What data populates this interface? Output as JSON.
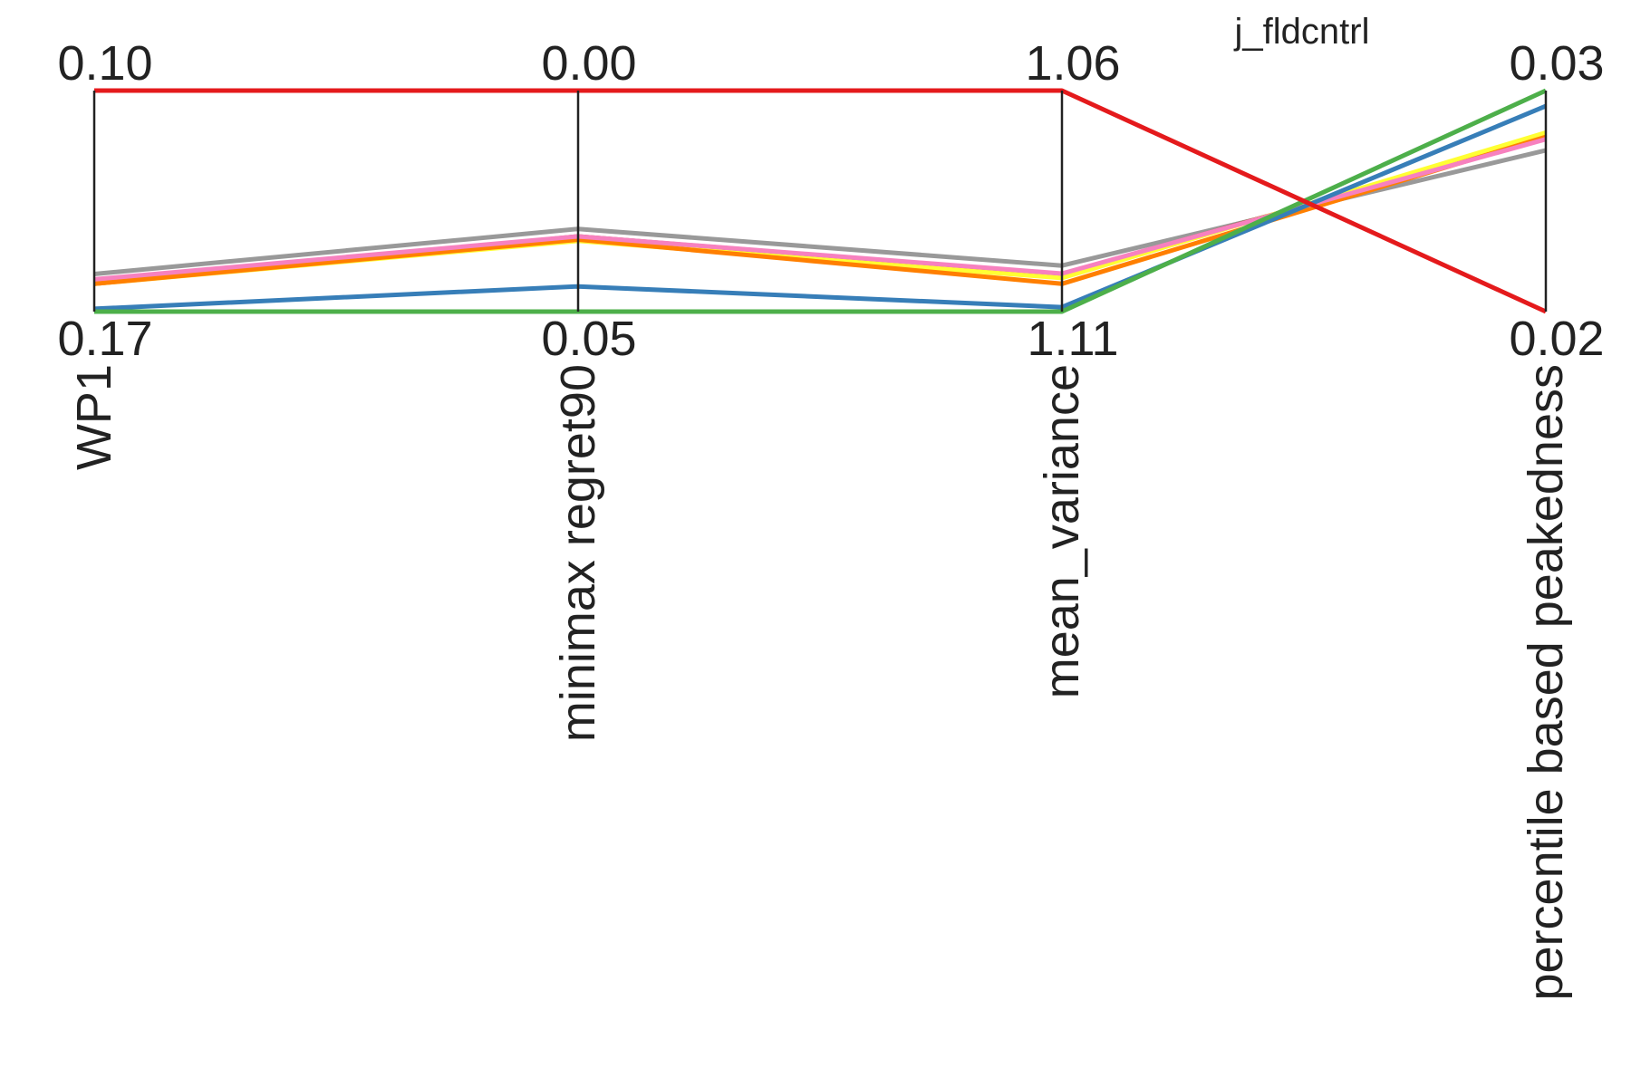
{
  "chart_data": {
    "type": "parallel_coordinates",
    "title": "j_fldcntrl",
    "axes": [
      {
        "name": "WP1",
        "top_label": "0.10",
        "bottom_label": "0.17",
        "top": 0.1,
        "bottom": 0.17
      },
      {
        "name": "minimax regret90",
        "top_label": "0.00",
        "bottom_label": "0.05",
        "top": 0.0,
        "bottom": 0.05
      },
      {
        "name": "mean_variance",
        "top_label": "1.06",
        "bottom_label": "1.11",
        "top": 1.06,
        "bottom": 1.11
      },
      {
        "name": "percentile based peakedness",
        "top_label": "0.03",
        "bottom_label": "0.02",
        "top": 0.03,
        "bottom": 0.02
      }
    ],
    "series": [
      {
        "color": "#999999",
        "values": [
          0.1581,
          0.0313,
          1.0996,
          0.0273
        ]
      },
      {
        "color": "#a65628",
        "values": [
          0.1612,
          0.033,
          1.1016,
          0.0279
        ]
      },
      {
        "color": "#ffff33",
        "values": [
          0.1612,
          0.034,
          1.1024,
          0.0281
        ]
      },
      {
        "color": "#ff7f00",
        "values": [
          0.1612,
          0.0337,
          1.1037,
          0.0279
        ]
      },
      {
        "color": "#f781bf",
        "values": [
          0.1598,
          0.033,
          1.1014,
          0.0278
        ]
      },
      {
        "color": "#377eb8",
        "values": [
          0.1691,
          0.0443,
          1.109,
          0.0293
        ]
      },
      {
        "color": "#4daf4a",
        "values": [
          0.17,
          0.05,
          1.11,
          0.03
        ]
      },
      {
        "color": "#e41a1c",
        "values": [
          0.1,
          0.0,
          1.06,
          0.02
        ]
      }
    ]
  }
}
